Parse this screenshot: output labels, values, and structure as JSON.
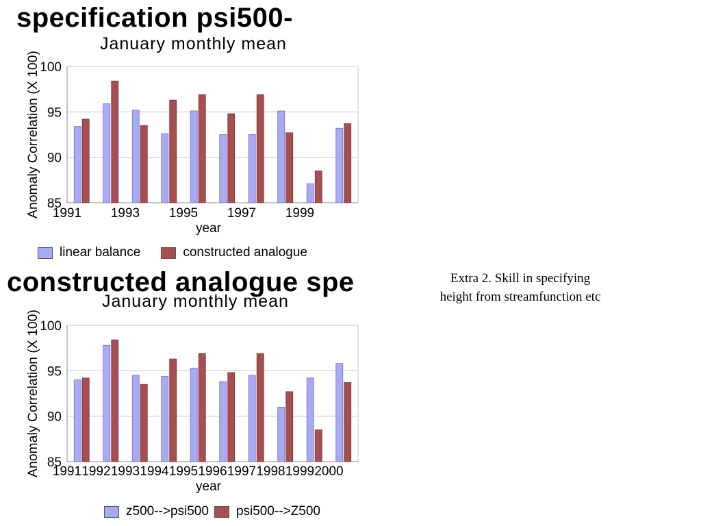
{
  "caption": {
    "line1": "Extra 2. Skill in specifying",
    "line2": "height from streamfunction etc"
  },
  "colors": {
    "series_a": "#a9aaf4",
    "series_b": "#a64f50",
    "grid": "#c8c8c8",
    "axis": "#888888"
  },
  "chart_data": [
    {
      "type": "bar",
      "title": "specification psi500-",
      "subtitle": "January monthly mean",
      "xlabel": "year",
      "ylabel": "Anomaly Correlation (X 100)",
      "ylim": [
        85,
        100
      ],
      "yticks": [
        85,
        90,
        95,
        100
      ],
      "categories": [
        "1991",
        "1992",
        "1993",
        "1994",
        "1995",
        "1996",
        "1997",
        "1998",
        "1999",
        "2000"
      ],
      "xtick_labels": [
        "1991",
        "",
        "1993",
        "",
        "1995",
        "",
        "1997",
        "",
        "1999",
        ""
      ],
      "grid": true,
      "legend_position": "bottom",
      "series": [
        {
          "name": "linear balance",
          "values": [
            93.4,
            95.9,
            95.2,
            92.6,
            95.1,
            92.5,
            92.5,
            95.1,
            87.1,
            93.2
          ]
        },
        {
          "name": "constructed analogue",
          "values": [
            94.2,
            98.4,
            93.5,
            96.3,
            96.9,
            94.8,
            96.9,
            92.7,
            88.5,
            93.7
          ]
        }
      ]
    },
    {
      "type": "bar",
      "title": "constructed analogue spe",
      "subtitle": "January monthly mean",
      "xlabel": "year",
      "ylabel": "Anomaly Correlation (X 100)",
      "ylim": [
        85,
        100
      ],
      "yticks": [
        85,
        90,
        95,
        100
      ],
      "categories": [
        "1991",
        "1992",
        "1993",
        "1994",
        "1995",
        "1996",
        "1997",
        "1998",
        "1999",
        "2000"
      ],
      "xtick_labels": [
        "1991",
        "1992",
        "1993",
        "1994",
        "1995",
        "1996",
        "1997",
        "1998",
        "1999",
        "2000"
      ],
      "grid": true,
      "legend_position": "bottom",
      "series": [
        {
          "name": "z500-->psi500",
          "values": [
            94.0,
            97.8,
            94.5,
            94.4,
            95.3,
            93.8,
            94.5,
            91.0,
            94.2,
            95.8
          ]
        },
        {
          "name": "psi500-->Z500",
          "values": [
            94.2,
            98.4,
            93.5,
            96.3,
            96.9,
            94.8,
            96.9,
            92.7,
            88.5,
            93.7
          ]
        }
      ]
    }
  ]
}
